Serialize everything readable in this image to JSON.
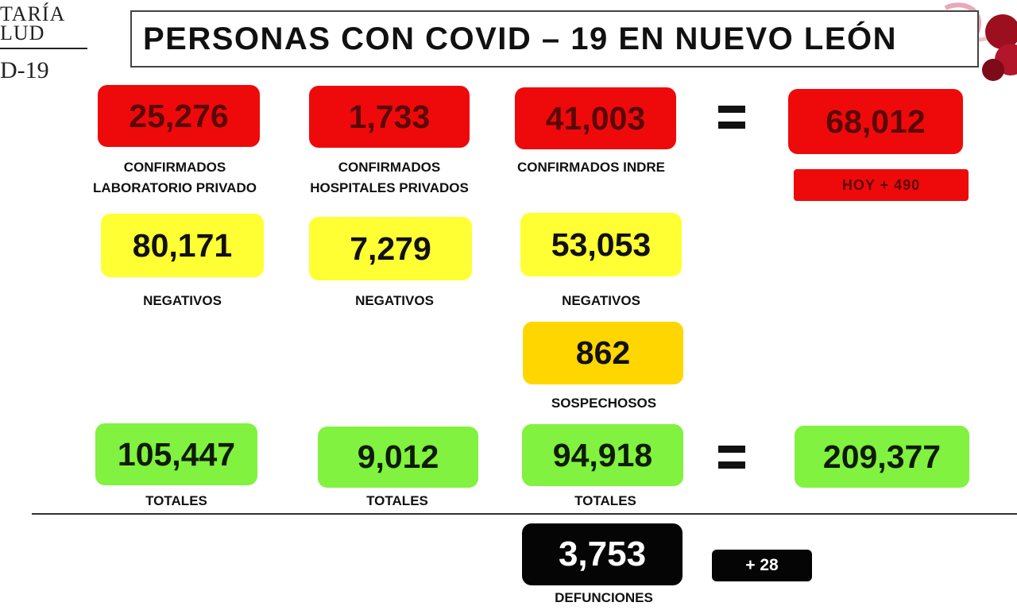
{
  "logo": {
    "line1": "TARÍA",
    "line2": "LUD",
    "line3": "D-19"
  },
  "title": "PERSONAS CON COVID – 19 EN NUEVO LEÓN",
  "confirmados": [
    {
      "value": "25,276",
      "label_1": "CONFIRMADOS",
      "label_2": "LABORATORIO PRIVADO"
    },
    {
      "value": "1,733",
      "label_1": "CONFIRMADOS",
      "label_2": "HOSPITALES PRIVADOS"
    },
    {
      "value": "41,003",
      "label_1": "CONFIRMADOS INDRE",
      "label_2": ""
    }
  ],
  "confirmados_total": {
    "value": "68,012",
    "today": "HOY + 490"
  },
  "negativos": [
    {
      "value": "80,171",
      "label": "NEGATIVOS"
    },
    {
      "value": "7,279",
      "label": "NEGATIVOS"
    },
    {
      "value": "53,053",
      "label": "NEGATIVOS"
    }
  ],
  "sospechosos": {
    "value": "862",
    "label": "SOSPECHOSOS"
  },
  "totales": [
    {
      "value": "105,447",
      "label": "TOTALES"
    },
    {
      "value": "9,012",
      "label": "TOTALES"
    },
    {
      "value": "94,918",
      "label": "TOTALES"
    }
  ],
  "gran_total": {
    "value": "209,377"
  },
  "defunciones": {
    "value": "3,753",
    "label": "DEFUNCIONES",
    "today": "+ 28"
  },
  "colors": {
    "confirmados": "#ee0a0a",
    "negativos": "#ffff33",
    "sospechosos": "#ffd600",
    "totales": "#80f23f",
    "defunciones": "#050505"
  }
}
